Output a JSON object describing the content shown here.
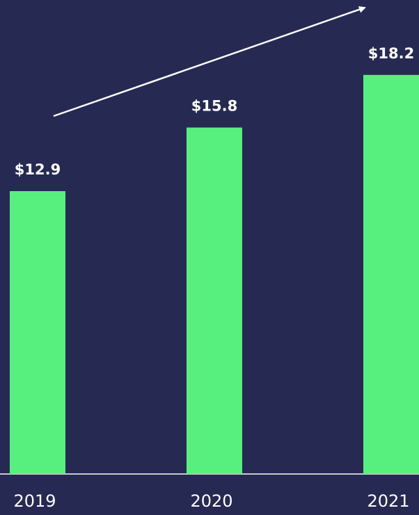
{
  "chart_data": {
    "type": "bar",
    "categories": [
      "2019",
      "2020",
      "2021"
    ],
    "values": [
      12.9,
      15.8,
      18.2
    ],
    "value_labels": [
      "$12.9",
      "$15.8",
      "$18.2"
    ],
    "color": "#57f07f",
    "ylim": [
      0,
      20
    ]
  }
}
